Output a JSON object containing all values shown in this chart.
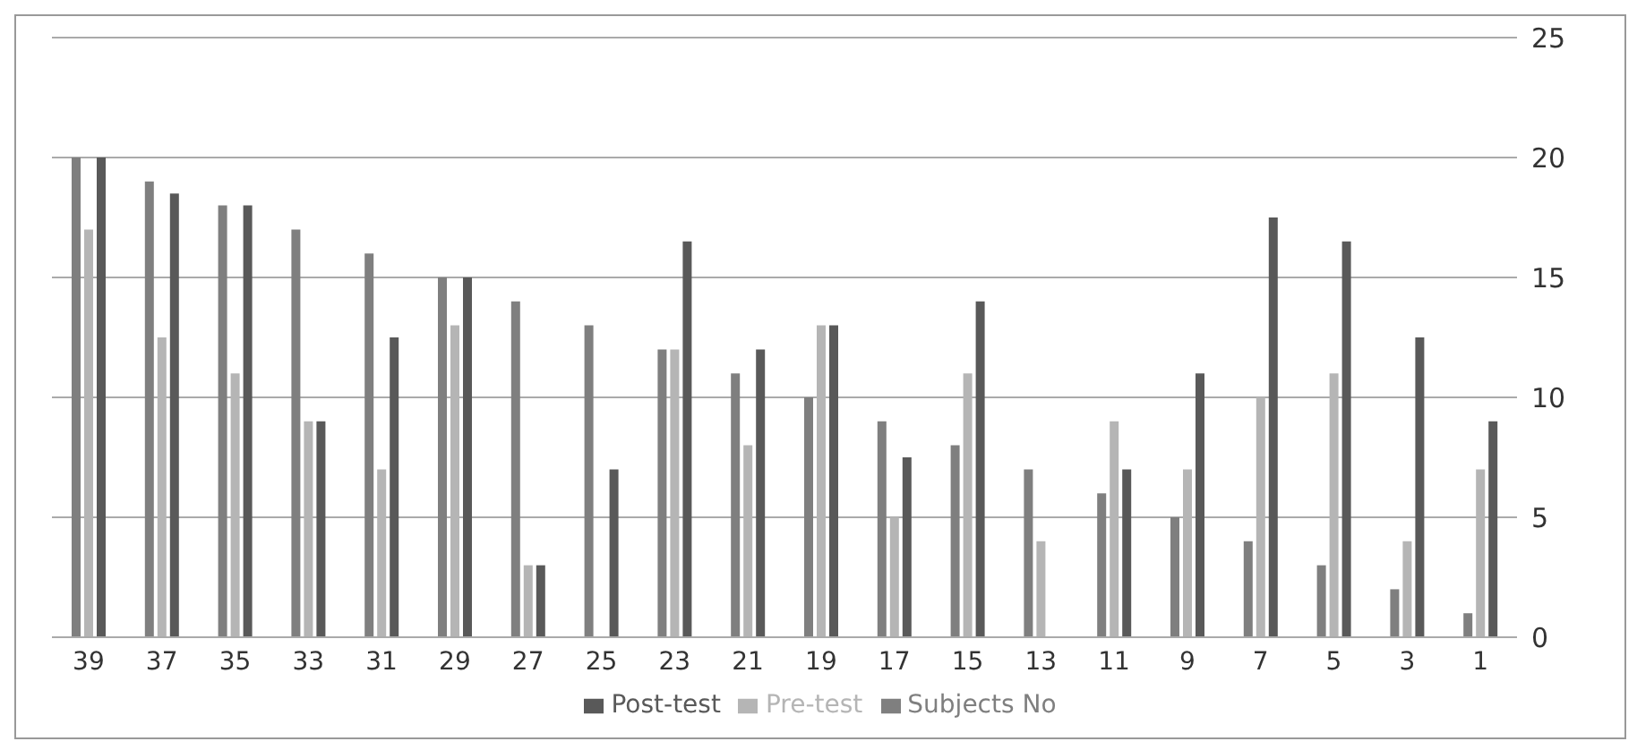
{
  "chart_data": {
    "type": "bar",
    "categories": [
      "39",
      "37",
      "35",
      "33",
      "31",
      "29",
      "27",
      "25",
      "23",
      "21",
      "19",
      "17",
      "15",
      "13",
      "11",
      "9",
      "7",
      "5",
      "3",
      "1"
    ],
    "series": [
      {
        "name": "Subjects No",
        "color": "#7f7f7f",
        "values": [
          20,
          19,
          18,
          17,
          16,
          15,
          14,
          13,
          12,
          11,
          10,
          9,
          8,
          7,
          6,
          5,
          4,
          3,
          2,
          1
        ]
      },
      {
        "name": "Pre-test",
        "color": "#b5b5b5",
        "values": [
          17,
          12.5,
          11,
          9,
          7,
          13,
          3,
          0,
          12,
          8,
          13,
          5,
          11,
          4,
          9,
          7,
          10,
          11,
          4,
          7
        ]
      },
      {
        "name": "Post-test",
        "color": "#595959",
        "values": [
          20,
          18.5,
          18,
          9,
          12.5,
          15,
          3,
          7,
          16.5,
          12,
          13,
          7.5,
          14,
          0,
          7,
          11,
          17.5,
          16.5,
          12.5,
          9
        ]
      }
    ],
    "ylim": [
      0,
      25
    ],
    "yticks": [
      0,
      5,
      10,
      15,
      20,
      25
    ],
    "grid": "y",
    "legend": "bottom"
  }
}
